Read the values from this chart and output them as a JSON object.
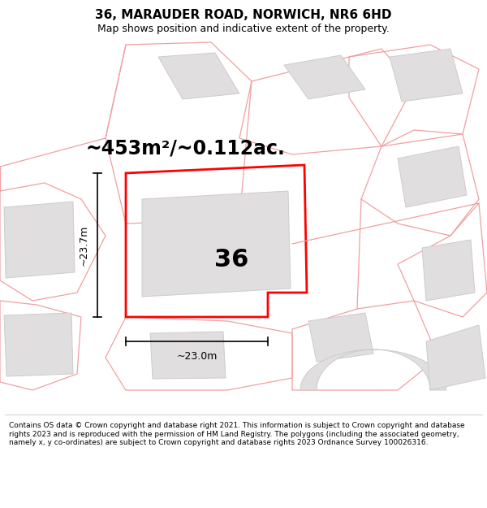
{
  "title": "36, MARAUDER ROAD, NORWICH, NR6 6HD",
  "subtitle": "Map shows position and indicative extent of the property.",
  "area_text": "~453m²/~0.112ac.",
  "width_text": "~23.0m",
  "height_text": "~23.7m",
  "number_label": "36",
  "footer": "Contains OS data © Crown copyright and database right 2021. This information is subject to Crown copyright and database rights 2023 and is reproduced with the permission of HM Land Registry. The polygons (including the associated geometry, namely x, y co-ordinates) are subject to Crown copyright and database rights 2023 Ordnance Survey 100026316.",
  "bg_color": "#ffffff",
  "map_bg": "#f7f2f2",
  "plot_edge": "#ff0000",
  "neighbor_edge": "#f0a0a0",
  "building_fill": "#e0dede",
  "building_edge": "#cccccc",
  "dim_color": "#000000",
  "title_size": 11,
  "subtitle_size": 9,
  "area_size": 17,
  "label_size": 9,
  "number_size": 22
}
